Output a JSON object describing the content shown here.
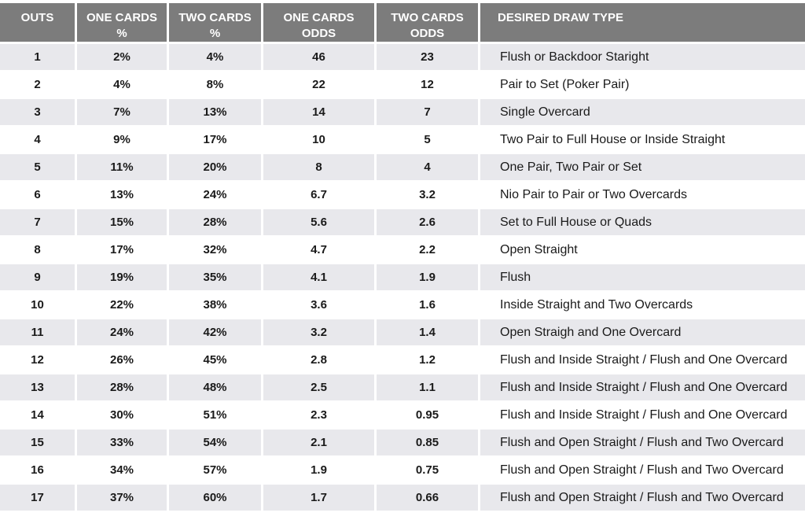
{
  "headers": [
    "OUTS",
    "ONE CARDS\n%",
    "TWO CARDS\n%",
    "ONE CARDS\nODDS",
    "TWO CARDS\nODDS",
    "DESIRED DRAW TYPE"
  ],
  "rows": [
    [
      "1",
      "2%",
      "4%",
      "46",
      "23",
      "Flush or Backdoor Staright"
    ],
    [
      "2",
      "4%",
      "8%",
      "22",
      "12",
      "Pair to Set (Poker Pair)"
    ],
    [
      "3",
      "7%",
      "13%",
      "14",
      "7",
      "Single Overcard"
    ],
    [
      "4",
      "9%",
      "17%",
      "10",
      "5",
      "Two Pair to Full House or Inside Straight"
    ],
    [
      "5",
      "11%",
      "20%",
      "8",
      "4",
      "One Pair, Two Pair or Set"
    ],
    [
      "6",
      "13%",
      "24%",
      "6.7",
      "3.2",
      "Nio Pair to Pair or Two Overcards"
    ],
    [
      "7",
      "15%",
      "28%",
      "5.6",
      "2.6",
      "Set to Full House or Quads"
    ],
    [
      "8",
      "17%",
      "32%",
      "4.7",
      "2.2",
      "Open Straight"
    ],
    [
      "9",
      "19%",
      "35%",
      "4.1",
      "1.9",
      "Flush"
    ],
    [
      "10",
      "22%",
      "38%",
      "3.6",
      "1.6",
      "Inside Straight and Two Overcards"
    ],
    [
      "11",
      "24%",
      "42%",
      "3.2",
      "1.4",
      "Open Straigh and One Overcard"
    ],
    [
      "12",
      "26%",
      "45%",
      "2.8",
      "1.2",
      "Flush and Inside Straight / Flush and One Overcard"
    ],
    [
      "13",
      "28%",
      "48%",
      "2.5",
      "1.1",
      "Flush and Inside Straight / Flush and One Overcard"
    ],
    [
      "14",
      "30%",
      "51%",
      "2.3",
      "0.95",
      "Flush and Inside Straight / Flush and One Overcard"
    ],
    [
      "15",
      "33%",
      "54%",
      "2.1",
      "0.85",
      "Flush and Open Straight / Flush and Two Overcard"
    ],
    [
      "16",
      "34%",
      "57%",
      "1.9",
      "0.75",
      "Flush and Open Straight / Flush and Two Overcard"
    ],
    [
      "17",
      "37%",
      "60%",
      "1.7",
      "0.66",
      "Flush and Open Straight / Flush and Two Overcard"
    ]
  ],
  "colors": {
    "header_bg": "#7c7c7c",
    "header_text": "#ffffff",
    "row_shade": "#e8e8ec",
    "row_plain": "#ffffff"
  }
}
